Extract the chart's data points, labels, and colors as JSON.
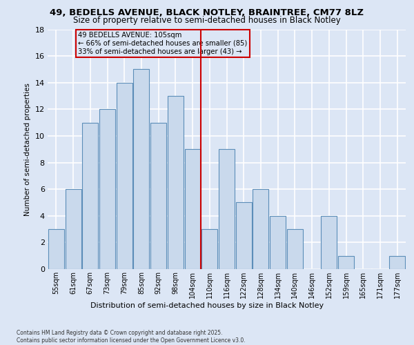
{
  "title1": "49, BEDELLS AVENUE, BLACK NOTLEY, BRAINTREE, CM77 8LZ",
  "title2": "Size of property relative to semi-detached houses in Black Notley",
  "xlabel": "Distribution of semi-detached houses by size in Black Notley",
  "ylabel": "Number of semi-detached properties",
  "categories": [
    "55sqm",
    "61sqm",
    "67sqm",
    "73sqm",
    "79sqm",
    "85sqm",
    "92sqm",
    "98sqm",
    "104sqm",
    "110sqm",
    "116sqm",
    "122sqm",
    "128sqm",
    "134sqm",
    "140sqm",
    "146sqm",
    "152sqm",
    "159sqm",
    "165sqm",
    "171sqm",
    "177sqm"
  ],
  "values": [
    3,
    6,
    11,
    12,
    14,
    15,
    11,
    13,
    9,
    3,
    9,
    5,
    6,
    4,
    3,
    0,
    4,
    1,
    0,
    0,
    1
  ],
  "bar_color": "#c9d9ec",
  "bar_edge_color": "#5b8db8",
  "vline_position": 8.5,
  "vline_color": "#cc0000",
  "annotation_title": "49 BEDELLS AVENUE: 105sqm",
  "annotation_line1": "← 66% of semi-detached houses are smaller (85)",
  "annotation_line2": "33% of semi-detached houses are larger (43) →",
  "annotation_box_color": "#cc0000",
  "ylim": [
    0,
    18
  ],
  "yticks": [
    0,
    2,
    4,
    6,
    8,
    10,
    12,
    14,
    16,
    18
  ],
  "background_color": "#dce6f5",
  "grid_color": "#ffffff",
  "footer": "Contains HM Land Registry data © Crown copyright and database right 2025.\nContains public sector information licensed under the Open Government Licence v3.0."
}
